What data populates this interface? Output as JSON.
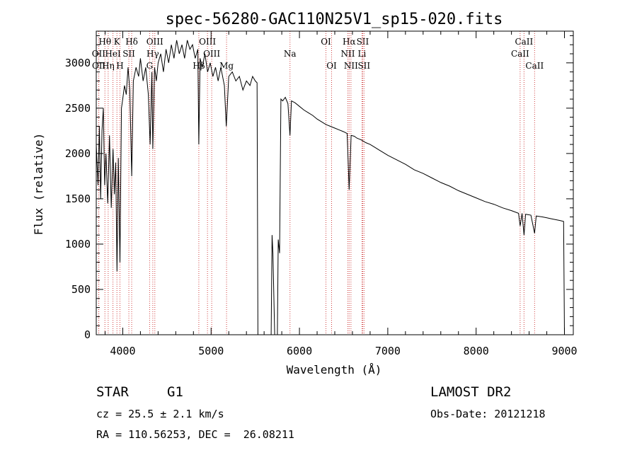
{
  "chart_data": {
    "type": "line",
    "title": "spec-56280-GAC110N25V1_sp15-020.fits",
    "xlabel": "Wavelength (Å)",
    "ylabel": "Flux (relative)",
    "xlim": [
      3700,
      9100
    ],
    "ylim": [
      0,
      3350
    ],
    "x_ticks": [
      4000,
      5000,
      6000,
      7000,
      8000,
      9000
    ],
    "y_ticks": [
      0,
      500,
      1000,
      1500,
      2000,
      2500,
      3000
    ],
    "grid": false,
    "series": [
      {
        "color": "#000000",
        "points": [
          [
            3700,
            2100
          ],
          [
            3720,
            1650
          ],
          [
            3735,
            2300
          ],
          [
            3750,
            1500
          ],
          [
            3765,
            2250
          ],
          [
            3780,
            2500
          ],
          [
            3795,
            1650
          ],
          [
            3810,
            2000
          ],
          [
            3830,
            1450
          ],
          [
            3850,
            2200
          ],
          [
            3870,
            1400
          ],
          [
            3890,
            2050
          ],
          [
            3905,
            1550
          ],
          [
            3920,
            1900
          ],
          [
            3935,
            700
          ],
          [
            3950,
            1950
          ],
          [
            3968,
            800
          ],
          [
            3985,
            2500
          ],
          [
            4000,
            2600
          ],
          [
            4020,
            2750
          ],
          [
            4040,
            2650
          ],
          [
            4060,
            2950
          ],
          [
            4080,
            2700
          ],
          [
            4101,
            1750
          ],
          [
            4120,
            2800
          ],
          [
            4150,
            2950
          ],
          [
            4180,
            2850
          ],
          [
            4200,
            3050
          ],
          [
            4230,
            2800
          ],
          [
            4260,
            2950
          ],
          [
            4290,
            2650
          ],
          [
            4310,
            2100
          ],
          [
            4330,
            2900
          ],
          [
            4340,
            2050
          ],
          [
            4360,
            2950
          ],
          [
            4380,
            2800
          ],
          [
            4400,
            3000
          ],
          [
            4430,
            3100
          ],
          [
            4460,
            2900
          ],
          [
            4490,
            3150
          ],
          [
            4520,
            3000
          ],
          [
            4550,
            3200
          ],
          [
            4580,
            3050
          ],
          [
            4610,
            3250
          ],
          [
            4640,
            3100
          ],
          [
            4670,
            3200
          ],
          [
            4700,
            3050
          ],
          [
            4730,
            3250
          ],
          [
            4760,
            3150
          ],
          [
            4790,
            3200
          ],
          [
            4820,
            3050
          ],
          [
            4850,
            3150
          ],
          [
            4861,
            2100
          ],
          [
            4875,
            3050
          ],
          [
            4900,
            2950
          ],
          [
            4930,
            3100
          ],
          [
            4960,
            2900
          ],
          [
            4990,
            3000
          ],
          [
            5020,
            2850
          ],
          [
            5050,
            2950
          ],
          [
            5080,
            2800
          ],
          [
            5110,
            2950
          ],
          [
            5150,
            2750
          ],
          [
            5172,
            2300
          ],
          [
            5200,
            2850
          ],
          [
            5240,
            2900
          ],
          [
            5280,
            2800
          ],
          [
            5320,
            2850
          ],
          [
            5360,
            2700
          ],
          [
            5400,
            2800
          ],
          [
            5440,
            2750
          ],
          [
            5470,
            2850
          ],
          [
            5500,
            2800
          ],
          [
            5520,
            2780
          ],
          [
            5530,
            0
          ],
          [
            5680,
            0
          ],
          [
            5690,
            1100
          ],
          [
            5700,
            900
          ],
          [
            5720,
            0
          ],
          [
            5750,
            0
          ],
          [
            5760,
            1050
          ],
          [
            5775,
            900
          ],
          [
            5790,
            2600
          ],
          [
            5810,
            2580
          ],
          [
            5840,
            2620
          ],
          [
            5870,
            2550
          ],
          [
            5893,
            2200
          ],
          [
            5910,
            2580
          ],
          [
            5950,
            2560
          ],
          [
            6000,
            2520
          ],
          [
            6050,
            2480
          ],
          [
            6100,
            2450
          ],
          [
            6150,
            2420
          ],
          [
            6200,
            2380
          ],
          [
            6250,
            2350
          ],
          [
            6300,
            2320
          ],
          [
            6350,
            2300
          ],
          [
            6400,
            2280
          ],
          [
            6450,
            2260
          ],
          [
            6500,
            2240
          ],
          [
            6540,
            2220
          ],
          [
            6563,
            1600
          ],
          [
            6585,
            2200
          ],
          [
            6620,
            2190
          ],
          [
            6650,
            2170
          ],
          [
            6700,
            2150
          ],
          [
            6750,
            2120
          ],
          [
            6800,
            2100
          ],
          [
            6850,
            2070
          ],
          [
            6900,
            2040
          ],
          [
            6950,
            2010
          ],
          [
            7000,
            1980
          ],
          [
            7100,
            1930
          ],
          [
            7200,
            1880
          ],
          [
            7300,
            1820
          ],
          [
            7400,
            1780
          ],
          [
            7500,
            1730
          ],
          [
            7600,
            1680
          ],
          [
            7700,
            1640
          ],
          [
            7800,
            1590
          ],
          [
            7900,
            1550
          ],
          [
            8000,
            1510
          ],
          [
            8100,
            1470
          ],
          [
            8200,
            1440
          ],
          [
            8300,
            1400
          ],
          [
            8400,
            1370
          ],
          [
            8480,
            1340
          ],
          [
            8498,
            1200
          ],
          [
            8520,
            1340
          ],
          [
            8542,
            1100
          ],
          [
            8560,
            1330
          ],
          [
            8620,
            1320
          ],
          [
            8662,
            1120
          ],
          [
            8680,
            1310
          ],
          [
            8750,
            1300
          ],
          [
            8800,
            1290
          ],
          [
            8850,
            1280
          ],
          [
            8900,
            1270
          ],
          [
            8950,
            1260
          ],
          [
            8990,
            1250
          ],
          [
            9000,
            0
          ]
        ]
      }
    ],
    "line_markers": [
      {
        "label": "Hθ",
        "x": 3798,
        "row": 0
      },
      {
        "label": "OII",
        "x": 3727,
        "row": 1
      },
      {
        "label": "OII",
        "x": 3729,
        "row": 2
      },
      {
        "label": "K",
        "x": 3934,
        "row": 0
      },
      {
        "label": "HeI",
        "x": 3889,
        "row": 1
      },
      {
        "label": "Hη",
        "x": 3835,
        "row": 2
      },
      {
        "label": "H",
        "x": 3968,
        "row": 2
      },
      {
        "label": "Hδ",
        "x": 4101,
        "row": 0
      },
      {
        "label": "SII",
        "x": 4069,
        "row": 1
      },
      {
        "label": "OIII",
        "x": 4363,
        "row": 0
      },
      {
        "label": "Hγ",
        "x": 4340,
        "row": 1
      },
      {
        "label": "G",
        "x": 4304,
        "row": 2
      },
      {
        "label": "OIII",
        "x": 4959,
        "row": 0
      },
      {
        "label": "OIII",
        "x": 5007,
        "row": 1
      },
      {
        "label": "Hβ",
        "x": 4861,
        "row": 2
      },
      {
        "label": "Mg",
        "x": 5175,
        "row": 2
      },
      {
        "label": "Na",
        "x": 5893,
        "row": 1
      },
      {
        "label": "OI",
        "x": 6300,
        "row": 0
      },
      {
        "label": "OI",
        "x": 6364,
        "row": 2
      },
      {
        "label": "Hα",
        "x": 6563,
        "row": 0
      },
      {
        "label": "SII",
        "x": 6716,
        "row": 0
      },
      {
        "label": "NII",
        "x": 6548,
        "row": 1
      },
      {
        "label": "Li",
        "x": 6708,
        "row": 1
      },
      {
        "label": "NII",
        "x": 6583,
        "row": 2
      },
      {
        "label": "SII",
        "x": 6731,
        "row": 2
      },
      {
        "label": "CaII",
        "x": 8542,
        "row": 0
      },
      {
        "label": "CaII",
        "x": 8498,
        "row": 1
      },
      {
        "label": "CaII",
        "x": 8662,
        "row": 2
      }
    ]
  },
  "info": {
    "object_class": "STAR",
    "subclass": "G1",
    "survey": "LAMOST DR2",
    "redshift": "cz = 25.5 ± 2.1 km/s",
    "obs_date": "Obs-Date: 20121218",
    "coords": "RA = 110.56253, DEC =  26.08211"
  }
}
